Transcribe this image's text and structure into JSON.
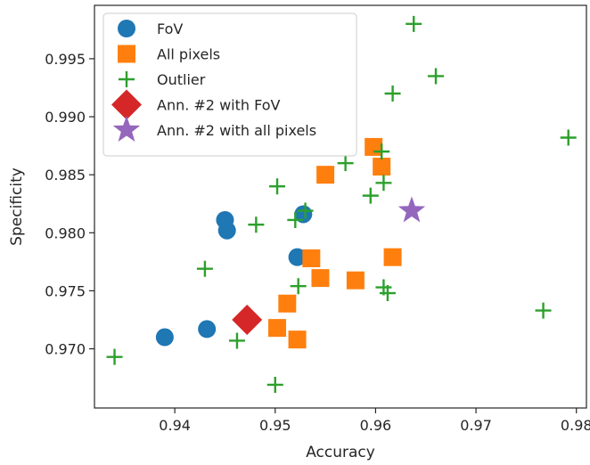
{
  "chart_data": {
    "type": "scatter",
    "xlabel": "Accuracy",
    "ylabel": "Specificity",
    "xlim": [
      0.932,
      0.981
    ],
    "ylim": [
      0.9649,
      0.9996
    ],
    "xticks": [
      0.94,
      0.95,
      0.96,
      0.97,
      0.98
    ],
    "xtick_labels": [
      "0.94",
      "0.95",
      "0.96",
      "0.97",
      "0.98"
    ],
    "yticks": [
      0.97,
      0.975,
      0.98,
      0.985,
      0.99,
      0.995
    ],
    "ytick_labels": [
      "0.970",
      "0.975",
      "0.980",
      "0.985",
      "0.990",
      "0.995"
    ],
    "grid": false,
    "legend_position": "top-left",
    "series": [
      {
        "name": "FoV",
        "marker": "circle",
        "color": "#1f77b4",
        "points": [
          [
            0.939,
            0.971
          ],
          [
            0.9432,
            0.9717
          ],
          [
            0.945,
            0.9811
          ],
          [
            0.9452,
            0.9802
          ],
          [
            0.9522,
            0.9779
          ],
          [
            0.9528,
            0.9816
          ]
        ]
      },
      {
        "name": "All pixels",
        "marker": "square",
        "color": "#ff7f0e",
        "points": [
          [
            0.9502,
            0.9718
          ],
          [
            0.9512,
            0.9739
          ],
          [
            0.9522,
            0.9708
          ],
          [
            0.9536,
            0.9778
          ],
          [
            0.9545,
            0.9761
          ],
          [
            0.955,
            0.985
          ],
          [
            0.958,
            0.9759
          ],
          [
            0.9598,
            0.9874
          ],
          [
            0.9606,
            0.9857
          ],
          [
            0.9617,
            0.9779
          ]
        ]
      },
      {
        "name": "Outlier",
        "marker": "plus",
        "color": "#2ca02c",
        "points": [
          [
            0.934,
            0.9693
          ],
          [
            0.943,
            0.9769
          ],
          [
            0.9462,
            0.9707
          ],
          [
            0.9481,
            0.9807
          ],
          [
            0.95,
            0.9669
          ],
          [
            0.9502,
            0.984
          ],
          [
            0.952,
            0.9811
          ],
          [
            0.9523,
            0.9754
          ],
          [
            0.953,
            0.9819
          ],
          [
            0.957,
            0.986
          ],
          [
            0.9595,
            0.9832
          ],
          [
            0.9606,
            0.987
          ],
          [
            0.9608,
            0.9843
          ],
          [
            0.9608,
            0.9753
          ],
          [
            0.9612,
            0.9748
          ],
          [
            0.9617,
            0.992
          ],
          [
            0.9638,
            0.998
          ],
          [
            0.966,
            0.9935
          ],
          [
            0.9767,
            0.9733
          ],
          [
            0.9792,
            0.9882
          ]
        ]
      },
      {
        "name": "Ann. #2 with FoV",
        "marker": "diamond",
        "color": "#d62728",
        "points": [
          [
            0.9472,
            0.9725
          ]
        ]
      },
      {
        "name": "Ann. #2 with all pixels",
        "marker": "star",
        "color": "#9467bd",
        "points": [
          [
            0.9636,
            0.9819
          ]
        ]
      }
    ]
  }
}
